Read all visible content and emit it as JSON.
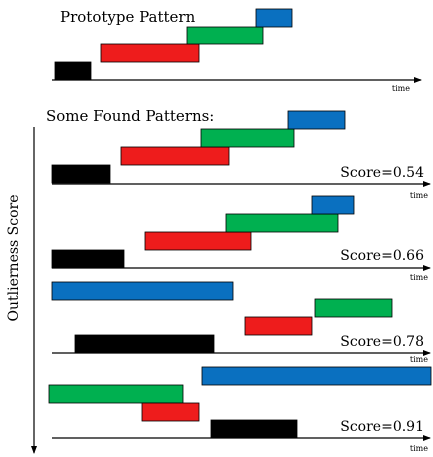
{
  "titles": {
    "prototype": "Prototype Pattern",
    "found": "Some Found Patterns:"
  },
  "axis_label": "time",
  "side_label": "Outlierness Score",
  "colors": {
    "black": "#000000",
    "red": "#ee1c1c",
    "green": "#00b050",
    "blue": "#0a70c0"
  },
  "prototype_bars": [
    "black",
    "red",
    "green",
    "blue"
  ],
  "patterns": [
    {
      "score": "Score=0.54",
      "bars": [
        "black",
        "red",
        "green",
        "blue"
      ]
    },
    {
      "score": "Score=0.66",
      "bars": [
        "black",
        "red",
        "green",
        "blue"
      ]
    },
    {
      "score": "Score=0.78",
      "bars": [
        "blue",
        "black",
        "red",
        "green"
      ]
    },
    {
      "score": "Score=0.91",
      "bars": [
        "green",
        "red",
        "blue",
        "black"
      ]
    }
  ]
}
